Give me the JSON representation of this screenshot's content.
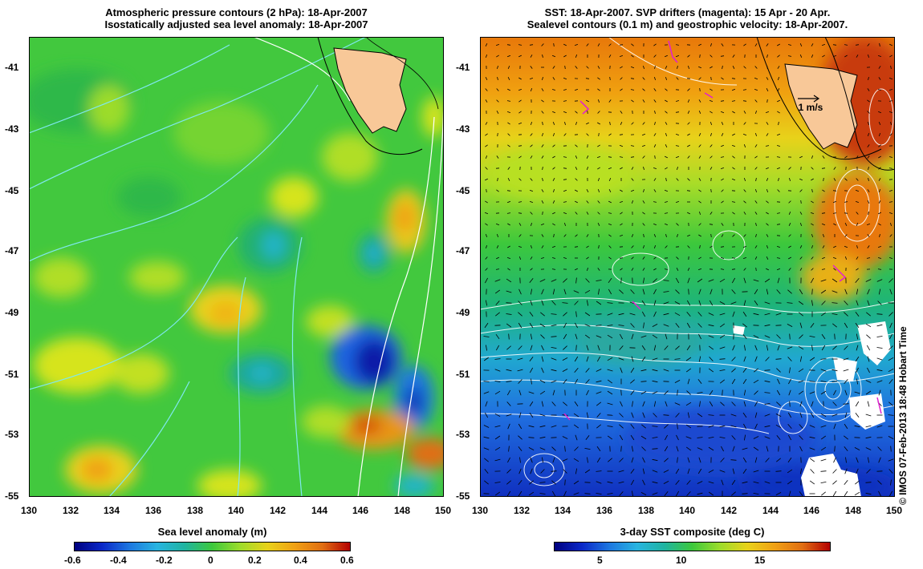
{
  "left_panel": {
    "title_line1": "Atmospheric pressure contours (2 hPa): 18-Apr-2007",
    "title_line2": "Isostatically adjusted sea level anomaly: 18-Apr-2007",
    "x_ticks": [
      "130",
      "132",
      "134",
      "136",
      "138",
      "140",
      "142",
      "144",
      "146",
      "148",
      "150"
    ],
    "y_ticks": [
      "-41",
      "-43",
      "-45",
      "-47",
      "-49",
      "-51",
      "-53",
      "-55"
    ],
    "colorbar_label": "Sea level anomaly (m)",
    "colorbar_ticks": [
      "-0.6",
      "-0.4",
      "-0.2",
      "0",
      "0.2",
      "0.4",
      "0.6"
    ]
  },
  "right_panel": {
    "title_line1": "SST: 18-Apr-2007. SVP drifters (magenta): 15 Apr - 20 Apr.",
    "title_line2": "Sealevel contours (0.1 m) and geostrophic velocity: 18-Apr-2007.",
    "x_ticks": [
      "130",
      "132",
      "134",
      "136",
      "138",
      "140",
      "142",
      "144",
      "146",
      "148",
      "150"
    ],
    "y_ticks": [
      "-41",
      "-43",
      "-45",
      "-47",
      "-49",
      "-51",
      "-53",
      "-55"
    ],
    "velocity_scale_label": "1 m/s",
    "colorbar_label": "3-day SST composite (deg C)",
    "colorbar_ticks": [
      "5",
      "10",
      "15"
    ]
  },
  "credit": "© IMOS 07-Feb-2013 18:48 Hobart Time",
  "colors": {
    "land": "#f8c898",
    "ocean_mid": "#3cc83c",
    "sla_low": "#00007f",
    "sla_high": "#b40000"
  }
}
